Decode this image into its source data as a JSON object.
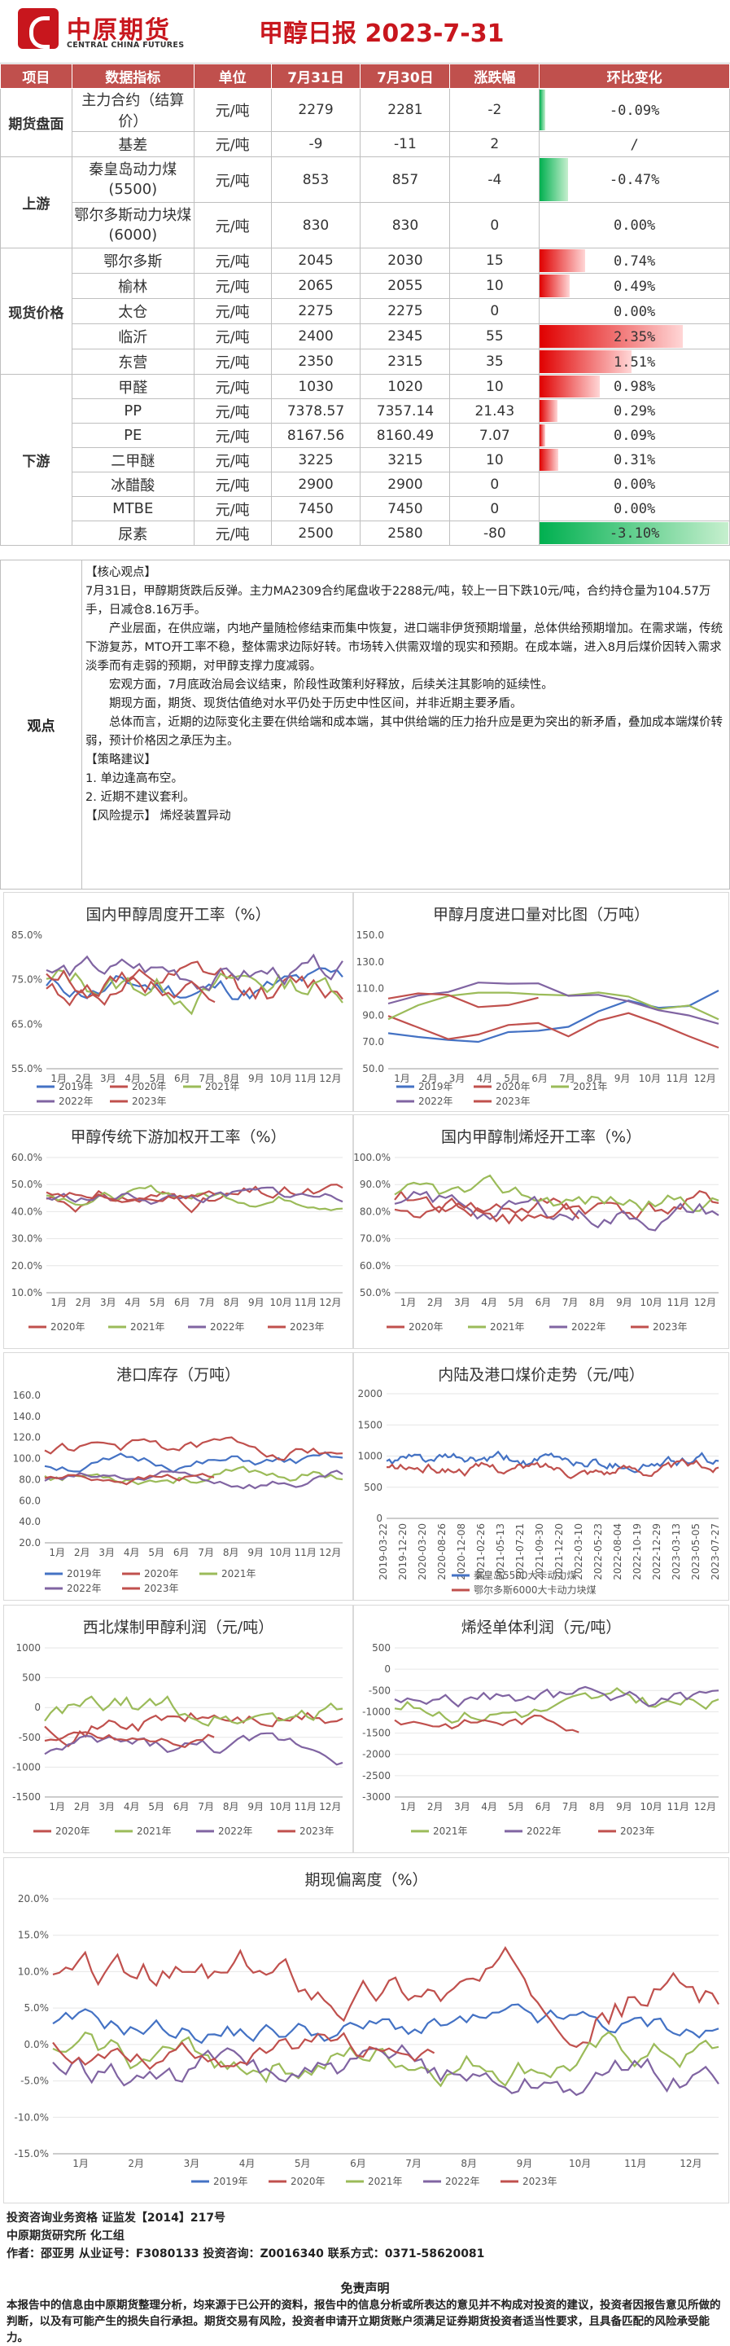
{
  "header": {
    "logo_cn": "中原期货",
    "logo_en": "CENTRAL CHINA FUTURES",
    "title": "甲醇日报  2023-7-31"
  },
  "table": {
    "headers": [
      "项目",
      "数据指标",
      "单位",
      "7月31日",
      "7月30日",
      "涨跌幅",
      "环比变化"
    ],
    "sections": [
      {
        "name": "期货盘面",
        "rows": [
          {
            "indicator": "主力合约（结算价）",
            "unit": "元/吨",
            "d1": "2279",
            "d2": "2281",
            "chg": "-2",
            "pct": "-0.09%",
            "pct_value": -0.09
          },
          {
            "indicator": "基差",
            "unit": "元/吨",
            "d1": "-9",
            "d2": "-11",
            "chg": "2",
            "pct": "/",
            "pct_value": null
          }
        ]
      },
      {
        "name": "上游",
        "rows": [
          {
            "indicator": "秦皇岛动力煤\n(5500)",
            "unit": "元/吨",
            "d1": "853",
            "d2": "857",
            "chg": "-4",
            "pct": "-0.47%",
            "pct_value": -0.47
          },
          {
            "indicator": "鄂尔多斯动力块煤\n(6000)",
            "unit": "元/吨",
            "d1": "830",
            "d2": "830",
            "chg": "0",
            "pct": "0.00%",
            "pct_value": 0
          }
        ]
      },
      {
        "name": "现货价格",
        "rows": [
          {
            "indicator": "鄂尔多斯",
            "unit": "元/吨",
            "d1": "2045",
            "d2": "2030",
            "chg": "15",
            "pct": "0.74%",
            "pct_value": 0.74
          },
          {
            "indicator": "榆林",
            "unit": "元/吨",
            "d1": "2065",
            "d2": "2055",
            "chg": "10",
            "pct": "0.49%",
            "pct_value": 0.49
          },
          {
            "indicator": "太仓",
            "unit": "元/吨",
            "d1": "2275",
            "d2": "2275",
            "chg": "0",
            "pct": "0.00%",
            "pct_value": 0
          },
          {
            "indicator": "临沂",
            "unit": "元/吨",
            "d1": "2400",
            "d2": "2345",
            "chg": "55",
            "pct": "2.35%",
            "pct_value": 2.35
          },
          {
            "indicator": "东营",
            "unit": "元/吨",
            "d1": "2350",
            "d2": "2315",
            "chg": "35",
            "pct": "1.51%",
            "pct_value": 1.51
          }
        ]
      },
      {
        "name": "下游",
        "rows": [
          {
            "indicator": "甲醛",
            "unit": "元/吨",
            "d1": "1030",
            "d2": "1020",
            "chg": "10",
            "pct": "0.98%",
            "pct_value": 0.98
          },
          {
            "indicator": "PP",
            "unit": "元/吨",
            "d1": "7378.57",
            "d2": "7357.14",
            "chg": "21.43",
            "pct": "0.29%",
            "pct_value": 0.29
          },
          {
            "indicator": "PE",
            "unit": "元/吨",
            "d1": "8167.56",
            "d2": "8160.49",
            "chg": "7.07",
            "pct": "0.09%",
            "pct_value": 0.09
          },
          {
            "indicator": "二甲醚",
            "unit": "元/吨",
            "d1": "3225",
            "d2": "3215",
            "chg": "10",
            "pct": "0.31%",
            "pct_value": 0.31
          },
          {
            "indicator": "冰醋酸",
            "unit": "元/吨",
            "d1": "2900",
            "d2": "2900",
            "chg": "0",
            "pct": "0.00%",
            "pct_value": 0
          },
          {
            "indicator": "MTBE",
            "unit": "元/吨",
            "d1": "7450",
            "d2": "7450",
            "chg": "0",
            "pct": "0.00%",
            "pct_value": 0
          },
          {
            "indicator": "尿素",
            "unit": "元/吨",
            "d1": "2500",
            "d2": "2580",
            "chg": "-80",
            "pct": "-3.10%",
            "pct_value": -3.1
          }
        ]
      }
    ]
  },
  "view": {
    "label": "观点",
    "paragraphs": [
      "【核心观点】",
      "7月31日，甲醇期货跌后反弹。主力MA2309合约尾盘收于2288元/吨，较上一日下跌10元/吨，合约持仓量为104.57万手，日减仓8.16万手。",
      "产业层面，在供应端，内地产量随检修结束而集中恢复，进口端非伊货预期增量，总体供给预期增加。在需求端，传统下游复苏，MTO开工率不稳，整体需求边际好转。市场转入供需双增的现实和预期。在成本端，进入8月后煤价因转入需求淡季而有走弱的预期，对甲醇支撑力度减弱。",
      "宏观方面，7月底政治局会议结束，阶段性政策利好释放，后续关注其影响的延续性。",
      "期现方面，期货、现货估值绝对水平仍处于历史中性区间，并非近期主要矛盾。",
      "总体而言，近期的边际变化主要在供给端和成本端，其中供给端的压力抬升应是更为突出的新矛盾，叠加成本端煤价转弱，预计价格因之承压为主。",
      "【策略建议】",
      "1. 单边逢高布空。",
      "2. 近期不建议套利。",
      "【风险提示】 烯烃装置异动"
    ]
  },
  "months": [
    "1月",
    "2月",
    "3月",
    "4月",
    "5月",
    "6月",
    "7月",
    "8月",
    "9月",
    "10月",
    "11月",
    "12月"
  ],
  "charts": {
    "c1": {
      "title": "国内甲醇周度开工率（%）",
      "yticks": [
        "85.0%",
        "75.0%",
        "65.0%",
        "55.0%"
      ],
      "legend": [
        "2019年",
        "2020年",
        "2021年",
        "2022年",
        "2023年"
      ]
    },
    "c2": {
      "title": "甲醇月度进口量对比图（万吨）",
      "yticks": [
        "150.0",
        "130.0",
        "110.0",
        "90.0",
        "70.0",
        "50.0"
      ],
      "legend": [
        "2019年",
        "2020年",
        "2021年",
        "2022年",
        "2023年"
      ]
    },
    "c3": {
      "title": "甲醇传统下游加权开工率（%）",
      "yticks": [
        "60.0%",
        "50.0%",
        "40.0%",
        "30.0%",
        "20.0%",
        "10.0%"
      ],
      "legend": [
        "2020年",
        "2021年",
        "2022年",
        "2023年"
      ]
    },
    "c4": {
      "title": "国内甲醇制烯烃开工率（%）",
      "yticks": [
        "100.0%",
        "90.0%",
        "80.0%",
        "70.0%",
        "60.0%",
        "50.0%"
      ],
      "legend": [
        "2020年",
        "2021年",
        "2022年",
        "2023年"
      ]
    },
    "c5": {
      "title": "港口库存（万吨）",
      "yticks": [
        "160.0",
        "140.0",
        "120.0",
        "100.0",
        "80.0",
        "60.0",
        "40.0",
        "20.0"
      ],
      "legend": [
        "2019年",
        "2020年",
        "2021年",
        "2022年",
        "2023年"
      ]
    },
    "c6": {
      "title": "内陆及港口煤价走势（元/吨）",
      "yticks": [
        "2000",
        "1500",
        "1000",
        "500",
        "0"
      ],
      "xdates": [
        "2019-03-22",
        "2019-12-20",
        "2020-03-20",
        "2020-08-26",
        "2020-12-08",
        "2021-02-26",
        "2021-05-13",
        "2021-07-21",
        "2021-09-30",
        "2021-12-20",
        "2022-03-10",
        "2022-05-23",
        "2022-08-04",
        "2022-10-19",
        "2022-12-29",
        "2023-03-13",
        "2023-05-05",
        "2023-07-27"
      ],
      "legend": [
        "秦皇岛5500大卡动力煤",
        "鄂尔多斯6000大卡动力块煤"
      ]
    },
    "c7": {
      "title": "西北煤制甲醇利润（元/吨）",
      "yticks": [
        "1000",
        "500",
        "0",
        "-500",
        "-1000",
        "-1500"
      ],
      "legend": [
        "2020年",
        "2021年",
        "2022年",
        "2023年"
      ]
    },
    "c8": {
      "title": "烯烃单体利润（元/吨）",
      "yticks": [
        "500",
        "0",
        "-500",
        "-1000",
        "-1500",
        "-2000",
        "-2500",
        "-3000"
      ],
      "legend": [
        "2021年",
        "2022年",
        "2023年"
      ]
    },
    "c9": {
      "title": "期现偏离度（%）",
      "yticks": [
        "20.0%",
        "15.0%",
        "10.0%",
        "5.0%",
        "0.0%",
        "-5.0%",
        "-10.0%",
        "-15.0%"
      ],
      "legend": [
        "2019年",
        "2020年",
        "2021年",
        "2022年",
        "2023年"
      ]
    }
  },
  "colors": {
    "2019": "#4472c4",
    "2020": "#c0504d",
    "2021": "#9bbb59",
    "2022": "#8064a2",
    "2023": "#c0504d",
    "header": "#c0504d",
    "pos": "#e00000",
    "neg": "#00b050"
  },
  "footer": {
    "qual": "投资咨询业务资格   证监发【2014】217号",
    "org": "中原期货研究所    化工组",
    "author": "作者：邵亚男        从业证号：F3080133     投资咨询：Z0016340     联系方式：0371-58620081",
    "disclaimer_title": "免责声明",
    "disclaimer": "本报告中的信息由中原期货整理分析，均来源于已公开的资料，报告中的信息分析或所表达的意见并不构成对投资的建议，投资者因报告意见所做的判断，以及有可能产生的损失自行承担。期货交易有风险，投资者申请开立期货账户须满足证券期货投资者适当性要求，且具备匹配的风险承受能力。"
  }
}
